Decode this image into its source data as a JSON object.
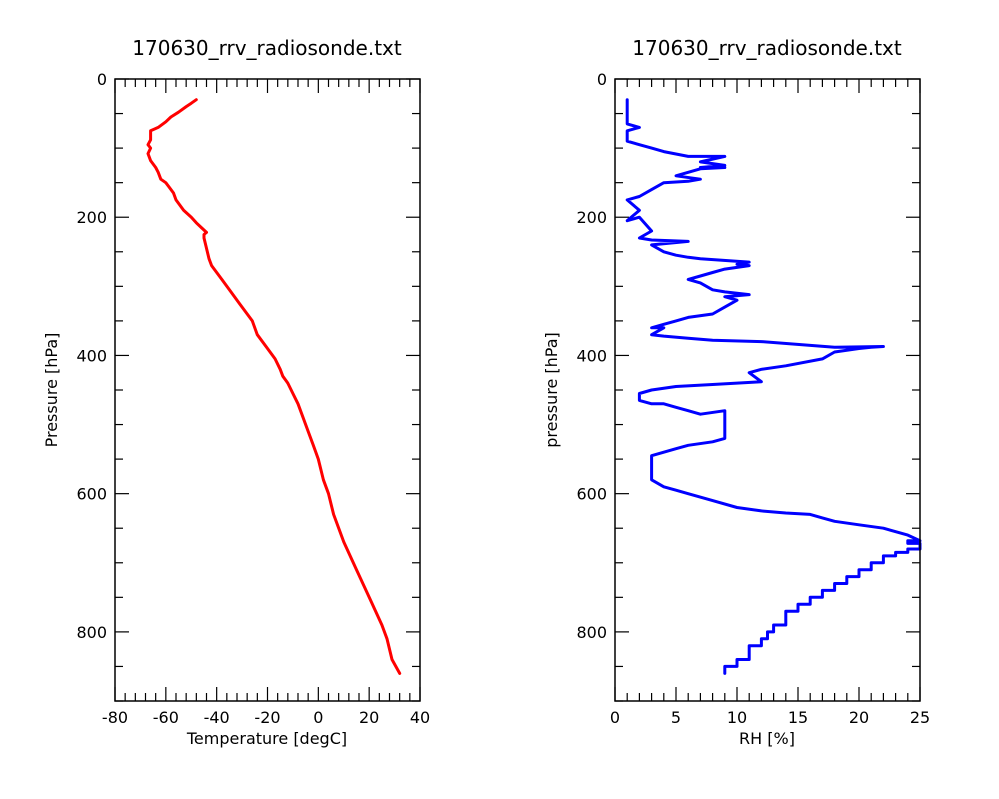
{
  "colors": {
    "temperature_line": "#ff0000",
    "rh_line": "#0000ff",
    "axes": "#000000",
    "background": "#ffffff"
  },
  "chart_data": [
    {
      "type": "line",
      "title": "170630_rrv_radiosonde.txt",
      "xlabel": "Temperature [degC]",
      "ylabel": "Pressure [hPa]",
      "xlim": [
        -80,
        40
      ],
      "ylim": [
        900,
        0
      ],
      "y_inverted": true,
      "xticks": [
        -80,
        -60,
        -40,
        -20,
        0,
        20,
        40
      ],
      "yticks": [
        0,
        200,
        400,
        600,
        800
      ],
      "grid": false,
      "series": [
        {
          "color": "#ff0000",
          "x": [
            32,
            29,
            27,
            25,
            20,
            15,
            10,
            6,
            4,
            2,
            0,
            -2,
            -4,
            -6,
            -8,
            -10,
            -12,
            -13,
            -14,
            -15,
            -17,
            -20,
            -24,
            -26,
            -28,
            -31,
            -35,
            -38,
            -40,
            -42,
            -43,
            -44,
            -45,
            -45,
            -44,
            -46,
            -48,
            -50,
            -53,
            -56,
            -57,
            -59,
            -60,
            -62,
            -63,
            -64,
            -66,
            -67,
            -66,
            -67,
            -66,
            -66,
            -66,
            -63,
            -60,
            -58,
            -55,
            -52,
            -50,
            -48
          ],
          "y": [
            860,
            840,
            810,
            790,
            750,
            710,
            670,
            630,
            600,
            580,
            550,
            530,
            510,
            490,
            470,
            455,
            440,
            435,
            430,
            420,
            405,
            390,
            370,
            350,
            340,
            325,
            305,
            290,
            280,
            270,
            260,
            245,
            230,
            225,
            222,
            215,
            208,
            200,
            190,
            175,
            165,
            155,
            150,
            145,
            135,
            128,
            118,
            108,
            100,
            95,
            88,
            80,
            75,
            70,
            62,
            55,
            48,
            40,
            35,
            30
          ]
        }
      ]
    },
    {
      "type": "line",
      "title": "170630_rrv_radiosonde.txt",
      "xlabel": "RH [%]",
      "ylabel": "pressure [hPa]",
      "xlim": [
        0,
        25
      ],
      "ylim": [
        900,
        0
      ],
      "y_inverted": true,
      "xticks": [
        0,
        5,
        10,
        15,
        20,
        25
      ],
      "yticks": [
        0,
        200,
        400,
        600,
        800
      ],
      "grid": false,
      "series": [
        {
          "color": "#0000ff",
          "x": [
            9,
            9,
            10,
            10,
            11,
            11,
            12,
            12,
            12.5,
            12.5,
            13,
            13,
            14,
            14,
            15,
            15,
            16,
            16,
            17,
            17,
            18,
            18,
            19,
            19,
            20,
            20,
            21,
            21,
            22,
            22,
            23,
            23,
            24,
            24,
            25,
            25,
            24,
            24,
            25,
            24,
            22,
            20,
            18,
            17,
            16,
            14,
            12,
            10,
            8,
            6,
            5,
            4,
            3,
            3,
            4,
            5,
            6,
            8,
            9,
            9,
            7,
            6,
            5,
            4,
            3,
            2,
            2,
            3,
            5,
            8,
            10,
            12,
            11,
            12,
            14,
            17,
            18,
            20,
            21,
            22,
            18,
            12,
            8,
            6,
            4,
            3,
            4,
            3,
            4,
            5,
            6,
            8,
            9,
            10,
            9,
            11,
            9,
            8,
            7,
            6,
            7,
            8,
            9,
            11,
            10,
            11,
            7,
            6,
            5,
            4,
            3,
            6,
            3,
            2,
            3,
            2,
            1,
            2,
            1,
            2,
            3,
            4,
            6,
            7,
            5,
            6,
            7,
            9,
            7,
            9,
            7,
            9,
            6,
            4,
            3,
            2,
            1,
            1,
            2,
            1,
            1,
            1
          ],
          "y": [
            860,
            850,
            850,
            840,
            840,
            820,
            820,
            810,
            810,
            800,
            800,
            790,
            790,
            770,
            770,
            760,
            760,
            750,
            750,
            740,
            740,
            730,
            730,
            720,
            720,
            710,
            710,
            700,
            700,
            690,
            690,
            685,
            685,
            680,
            680,
            672,
            672,
            668,
            668,
            660,
            650,
            645,
            640,
            635,
            630,
            628,
            625,
            620,
            610,
            600,
            595,
            590,
            580,
            545,
            540,
            535,
            530,
            525,
            520,
            480,
            485,
            480,
            475,
            470,
            470,
            465,
            455,
            450,
            445,
            442,
            440,
            438,
            425,
            420,
            415,
            405,
            395,
            390,
            388,
            387,
            388,
            380,
            378,
            375,
            372,
            370,
            360,
            360,
            355,
            350,
            345,
            340,
            330,
            320,
            315,
            312,
            308,
            305,
            295,
            290,
            285,
            280,
            275,
            270,
            268,
            265,
            260,
            258,
            255,
            250,
            240,
            235,
            233,
            230,
            220,
            200,
            205,
            190,
            175,
            170,
            160,
            150,
            148,
            145,
            140,
            135,
            130,
            128,
            128,
            125,
            120,
            112,
            112,
            105,
            100,
            95,
            90,
            75,
            70,
            65,
            55,
            30
          ]
        }
      ]
    }
  ]
}
